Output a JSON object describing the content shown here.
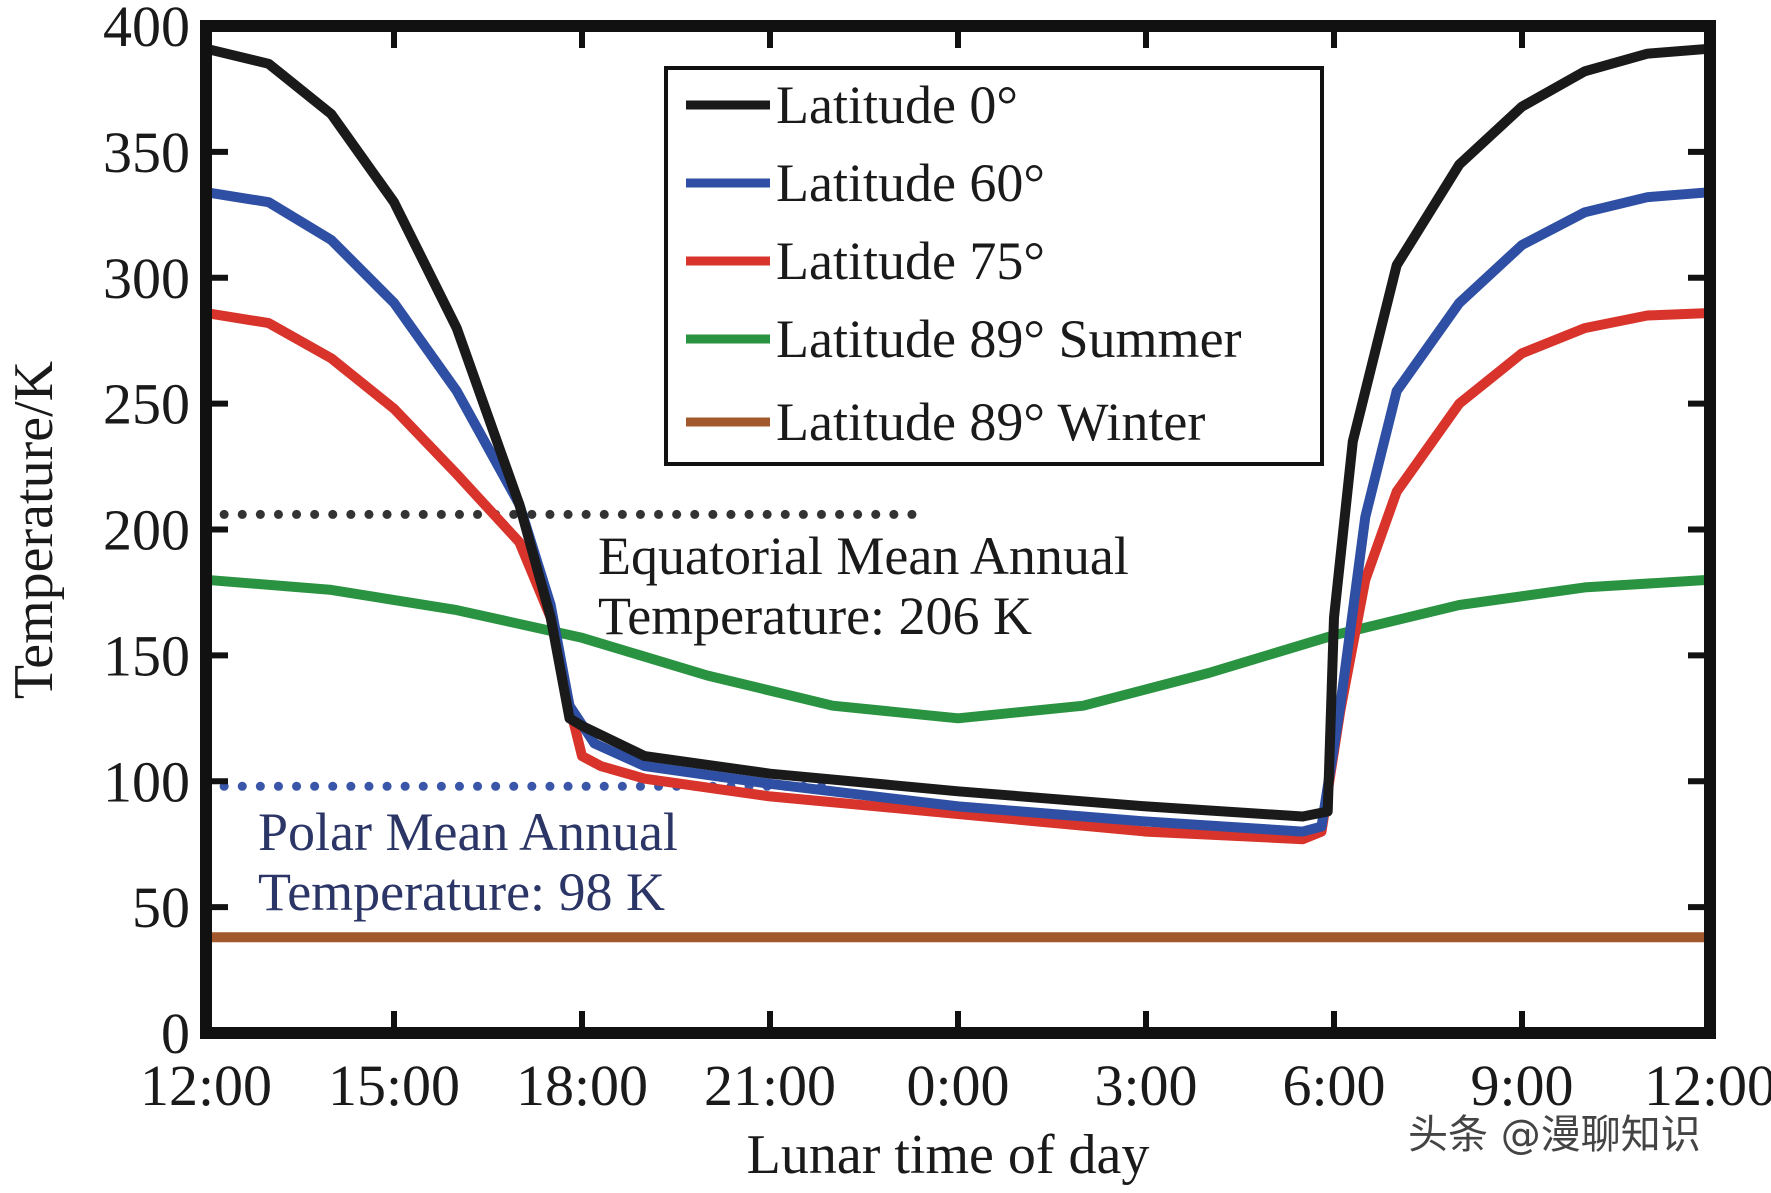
{
  "chart_data": {
    "type": "line",
    "title": "",
    "xlabel": "Lunar time of day",
    "ylabel": "Temperature/K",
    "x_ticks": [
      "12:00",
      "15:00",
      "18:00",
      "21:00",
      "0:00",
      "3:00",
      "6:00",
      "9:00",
      "12:00"
    ],
    "x_tick_hours": [
      0,
      3,
      6,
      9,
      12,
      15,
      18,
      21,
      24
    ],
    "xlim": [
      0,
      24
    ],
    "y_ticks": [
      "0",
      "50",
      "100",
      "150",
      "200",
      "250",
      "300",
      "350",
      "400"
    ],
    "y_tick_values": [
      0,
      50,
      100,
      150,
      200,
      250,
      300,
      350,
      400
    ],
    "ylim": [
      0,
      400
    ],
    "x_unit_note": "hours elapsed since lunar noon (12:00)",
    "series": [
      {
        "name": "Latitude 0°",
        "color": "#1a1a1a",
        "x": [
          0,
          1,
          2,
          3,
          4,
          5,
          5.5,
          5.8,
          6.0,
          7,
          9,
          12,
          15,
          17.5,
          17.9,
          18.0,
          18.3,
          19,
          20,
          21,
          22,
          23,
          24
        ],
        "y": [
          391,
          385,
          365,
          330,
          280,
          210,
          165,
          125,
          122,
          110,
          103,
          96,
          90,
          86,
          88,
          165,
          235,
          305,
          345,
          368,
          382,
          389,
          391
        ]
      },
      {
        "name": "Latitude 60°",
        "color": "#2e4fa3",
        "x": [
          0,
          1,
          2,
          3,
          4,
          5,
          5.5,
          5.8,
          6.2,
          7,
          9,
          12,
          15,
          17.5,
          17.8,
          18.1,
          18.5,
          19,
          20,
          21,
          22,
          23,
          24
        ],
        "y": [
          334,
          330,
          315,
          290,
          255,
          210,
          170,
          130,
          115,
          106,
          99,
          90,
          84,
          80,
          82,
          130,
          205,
          255,
          290,
          313,
          326,
          332,
          334
        ]
      },
      {
        "name": "Latitude 75°",
        "color": "#d8342b",
        "x": [
          0,
          1,
          2,
          3,
          4,
          5,
          5.5,
          5.8,
          6.0,
          6.3,
          7,
          9,
          12,
          15,
          17.5,
          17.8,
          18.1,
          18.5,
          19,
          20,
          21,
          22,
          23,
          24
        ],
        "y": [
          286,
          282,
          268,
          248,
          222,
          195,
          165,
          130,
          110,
          106,
          101,
          94,
          87,
          80,
          77,
          80,
          128,
          180,
          215,
          250,
          270,
          280,
          285,
          286
        ]
      },
      {
        "name": "Latitude 89° Summer",
        "color": "#2a9341",
        "x": [
          0,
          2,
          4,
          6,
          8,
          10,
          12,
          14,
          16,
          18,
          20,
          22,
          24
        ],
        "y": [
          180,
          176,
          168,
          157,
          142,
          130,
          125,
          130,
          143,
          158,
          170,
          177,
          180
        ]
      },
      {
        "name": "Latitude 89° Winter",
        "color": "#a0582c",
        "x": [
          0,
          24
        ],
        "y": [
          38,
          38
        ]
      }
    ],
    "reference_lines": [
      {
        "name": "Equatorial Mean Annual Temperature",
        "value": 206,
        "x_range": [
          0,
          11.4
        ],
        "color": "#333333",
        "style": "dotted",
        "label_line1": "Equatorial Mean Annual",
        "label_line2": "Temperature: 206 K",
        "label_color": "#1a1a1a"
      },
      {
        "name": "Polar Mean Annual Temperature",
        "value": 98,
        "x_range": [
          0,
          10.0
        ],
        "color": "#3a56a8",
        "style": "dotted",
        "label_line1": "Polar Mean Annual",
        "label_line2": "Temperature: 98 K",
        "label_color": "#2b3566"
      }
    ],
    "legend": {
      "placement": "top-center",
      "entries": [
        "Latitude 0°",
        "Latitude 60°",
        "Latitude 75°",
        "Latitude 89° Summer",
        "Latitude 89° Winter"
      ]
    },
    "grid": false
  },
  "watermark": "头条 @漫聊知识"
}
